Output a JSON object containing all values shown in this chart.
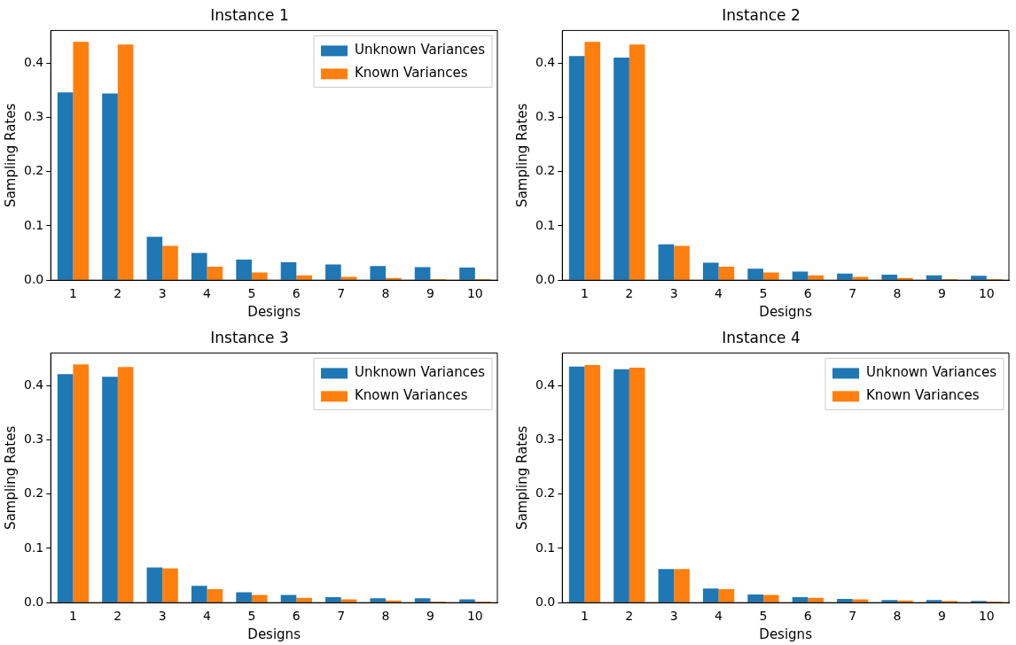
{
  "chart_data": [
    {
      "type": "bar",
      "title": "Instance 1",
      "xlabel": "Designs",
      "ylabel": "Sampling Rates",
      "categories": [
        "1",
        "2",
        "3",
        "4",
        "5",
        "6",
        "7",
        "8",
        "9",
        "10"
      ],
      "series": [
        {
          "name": "Unknown Variances",
          "color": "#1f77b4",
          "values": [
            0.346,
            0.344,
            0.08,
            0.05,
            0.038,
            0.033,
            0.029,
            0.026,
            0.024,
            0.023
          ]
        },
        {
          "name": "Known Variances",
          "color": "#ff7f0e",
          "values": [
            0.439,
            0.434,
            0.063,
            0.025,
            0.014,
            0.009,
            0.006,
            0.004,
            0.002,
            0.002
          ]
        }
      ],
      "ylim": [
        0,
        0.46
      ],
      "yticks": [
        {
          "value": 0,
          "label": "0.0"
        },
        {
          "value": 0.1,
          "label": "0.1"
        },
        {
          "value": 0.2,
          "label": "0.2"
        },
        {
          "value": 0.3,
          "label": "0.3"
        },
        {
          "value": 0.4,
          "label": "0.4"
        }
      ],
      "grid": false,
      "legend": "top right"
    },
    {
      "type": "bar",
      "title": "Instance 2",
      "xlabel": "Designs",
      "ylabel": "Sampling Rates",
      "categories": [
        "1",
        "2",
        "3",
        "4",
        "5",
        "6",
        "7",
        "8",
        "9",
        "10"
      ],
      "series": [
        {
          "color": "#1f77b4",
          "values": [
            0.413,
            0.41,
            0.066,
            0.032,
            0.021,
            0.016,
            0.012,
            0.01,
            0.009,
            0.008
          ]
        },
        {
          "color": "#ff7f0e",
          "values": [
            0.439,
            0.434,
            0.063,
            0.025,
            0.014,
            0.009,
            0.006,
            0.004,
            0.002,
            0.002
          ]
        }
      ],
      "ylim": [
        0,
        0.46
      ],
      "yticks": [
        {
          "value": 0,
          "label": "0.0"
        },
        {
          "value": 0.1,
          "label": "0.1"
        },
        {
          "value": 0.2,
          "label": "0.2"
        },
        {
          "value": 0.3,
          "label": "0.3"
        },
        {
          "value": 0.4,
          "label": "0.4"
        }
      ],
      "grid": false,
      "legend": false
    },
    {
      "type": "bar",
      "title": "Instance 3",
      "xlabel": "Designs",
      "ylabel": "Sampling Rates",
      "categories": [
        "1",
        "2",
        "3",
        "4",
        "5",
        "6",
        "7",
        "8",
        "9",
        "10"
      ],
      "series": [
        {
          "name": "Unknown Variances",
          "color": "#1f77b4",
          "values": [
            0.421,
            0.416,
            0.065,
            0.031,
            0.019,
            0.014,
            0.01,
            0.008,
            0.008,
            0.006
          ]
        },
        {
          "name": "Known Variances",
          "color": "#ff7f0e",
          "values": [
            0.439,
            0.434,
            0.063,
            0.025,
            0.014,
            0.009,
            0.006,
            0.004,
            0.002,
            0.002
          ]
        }
      ],
      "ylim": [
        0,
        0.46
      ],
      "yticks": [
        {
          "value": 0,
          "label": "0.0"
        },
        {
          "value": 0.1,
          "label": "0.1"
        },
        {
          "value": 0.2,
          "label": "0.2"
        },
        {
          "value": 0.3,
          "label": "0.3"
        },
        {
          "value": 0.4,
          "label": "0.4"
        }
      ],
      "grid": false,
      "legend": "top right"
    },
    {
      "type": "bar",
      "title": "Instance 4",
      "xlabel": "Designs",
      "ylabel": "Sampling Rates",
      "categories": [
        "1",
        "2",
        "3",
        "4",
        "5",
        "6",
        "7",
        "8",
        "9",
        "10"
      ],
      "series": [
        {
          "name": "Unknown Variances",
          "color": "#1f77b4",
          "values": [
            0.435,
            0.43,
            0.062,
            0.026,
            0.015,
            0.01,
            0.007,
            0.005,
            0.005,
            0.003
          ]
        },
        {
          "name": "Known Variances",
          "color": "#ff7f0e",
          "values": [
            0.438,
            0.433,
            0.062,
            0.025,
            0.014,
            0.009,
            0.006,
            0.004,
            0.003,
            0.002
          ]
        }
      ],
      "ylim": [
        0,
        0.46
      ],
      "yticks": [
        {
          "value": 0,
          "label": "0.0"
        },
        {
          "value": 0.1,
          "label": "0.1"
        },
        {
          "value": 0.2,
          "label": "0.2"
        },
        {
          "value": 0.3,
          "label": "0.3"
        },
        {
          "value": 0.4,
          "label": "0.4"
        }
      ],
      "grid": false,
      "legend": "top right"
    }
  ]
}
